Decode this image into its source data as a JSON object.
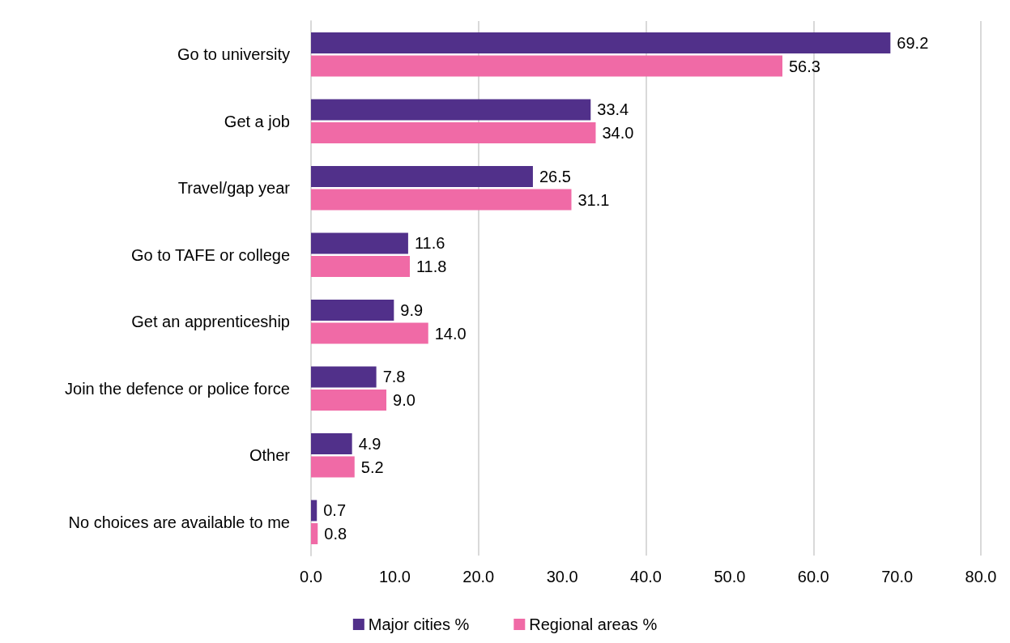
{
  "chart_data": {
    "type": "bar",
    "orientation": "horizontal",
    "categories": [
      "Go to university",
      "Get a job",
      "Travel/gap year",
      "Go to TAFE or college",
      "Get an apprenticeship",
      "Join the defence or police force",
      "Other",
      "No choices are available to me"
    ],
    "series": [
      {
        "name": "Major cities %",
        "color": "#51308a",
        "values": [
          69.2,
          33.4,
          26.5,
          11.6,
          9.9,
          7.8,
          4.9,
          0.7
        ],
        "value_labels": [
          "69.2",
          "33.4",
          "26.5",
          "11.6",
          "9.9",
          "7.8",
          "4.9",
          "0.7"
        ]
      },
      {
        "name": "Regional areas %",
        "color": "#f06aa6",
        "values": [
          56.3,
          34.0,
          31.1,
          11.8,
          14.0,
          9.0,
          5.2,
          0.8
        ],
        "value_labels": [
          "56.3",
          "34.0",
          "31.1",
          "11.8",
          "14.0",
          "9.0",
          "5.2",
          "0.8"
        ]
      }
    ],
    "xlim": [
      0,
      80
    ],
    "xticks": [
      {
        "value": 0,
        "label": "0.0"
      },
      {
        "value": 10,
        "label": "10.0"
      },
      {
        "value": 20,
        "label": "20.0"
      },
      {
        "value": 30,
        "label": "30.0"
      },
      {
        "value": 40,
        "label": "40.0"
      },
      {
        "value": 50,
        "label": "50.0"
      },
      {
        "value": 60,
        "label": "60.0"
      },
      {
        "value": 70,
        "label": "70.0"
      },
      {
        "value": 80,
        "label": "80.0"
      }
    ],
    "grid": "x",
    "legend": "bottom"
  }
}
